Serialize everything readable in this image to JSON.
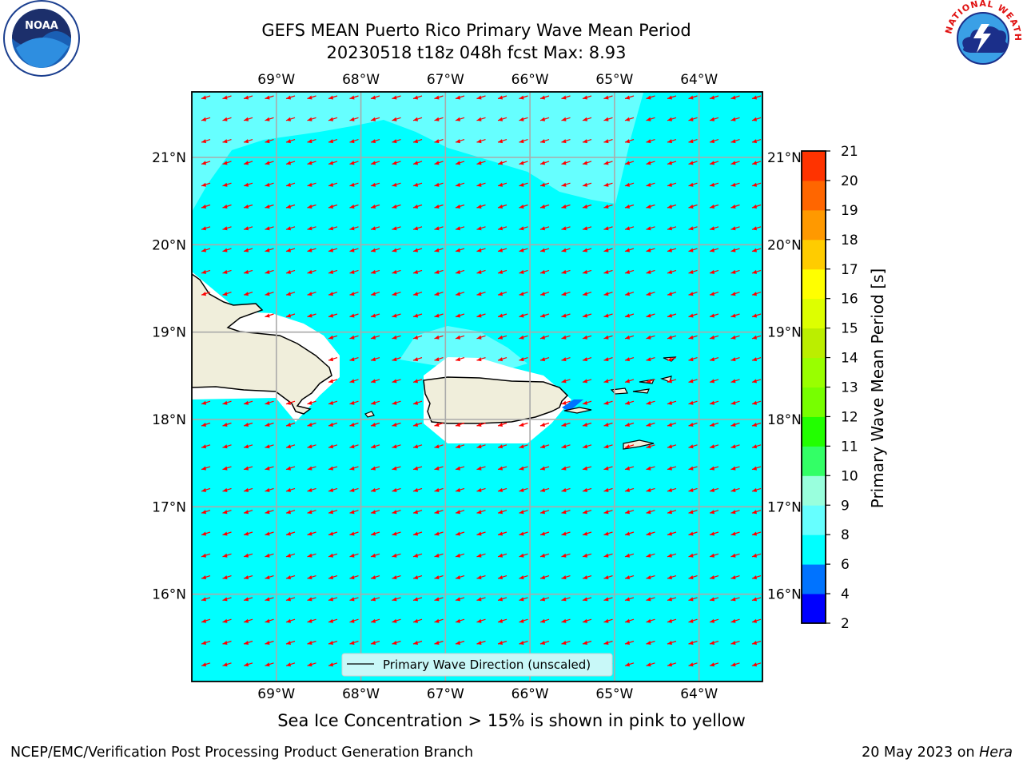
{
  "title": {
    "line1": "GEFS MEAN Puerto Rico Primary Wave Mean Period",
    "line2": "20230518 t18z 048h fcst   Max: 8.93"
  },
  "logos": {
    "left": {
      "name": "NOAA",
      "text": "NOAA"
    },
    "right": {
      "name": "National Weather Service",
      "ring_text": "NATIONAL WEATHER SERVICE"
    }
  },
  "map": {
    "lon_labels": [
      "69°W",
      "68°W",
      "67°W",
      "66°W",
      "65°W",
      "64°W"
    ],
    "lat_labels": [
      "21°N",
      "20°N",
      "19°N",
      "18°N",
      "17°N",
      "16°N"
    ],
    "lon_values": [
      -69,
      -68,
      -67,
      -66,
      -65,
      -64
    ],
    "lat_values": [
      21,
      20,
      19,
      18,
      17,
      16
    ],
    "extent": {
      "lon": [
        -70.0,
        -63.25
      ],
      "lat": [
        15.0,
        21.75
      ]
    },
    "ocean_color": "#00ffff",
    "light_color": "#66ffff",
    "land_color": "#f0eedb",
    "arrow_color": "#ff0000",
    "arrow_direction": "pointing west-southwest",
    "legend_label": "Primary Wave Direction (unscaled)"
  },
  "colorbar": {
    "label": "Primary Wave Mean Period [s]",
    "ticks": [
      "2",
      "4",
      "6",
      "8",
      "9",
      "10",
      "11",
      "12",
      "13",
      "14",
      "15",
      "16",
      "17",
      "18",
      "19",
      "20",
      "21"
    ],
    "colors": [
      "#0000ff",
      "#0073ff",
      "#00ffff",
      "#66ffff",
      "#99ffdd",
      "#33ff66",
      "#22ff00",
      "#77ff00",
      "#99ff00",
      "#bbee00",
      "#ddff00",
      "#ffff00",
      "#ffcc00",
      "#ff9900",
      "#ff6600",
      "#ff3300",
      "#ff0000"
    ]
  },
  "footnote": "Sea Ice Concentration > 15% is shown in pink to yellow",
  "credit": "NCEP/EMC/Verification Post Processing Product Generation Branch",
  "date": {
    "text": "20 May 2023 on",
    "host": "Hera"
  }
}
